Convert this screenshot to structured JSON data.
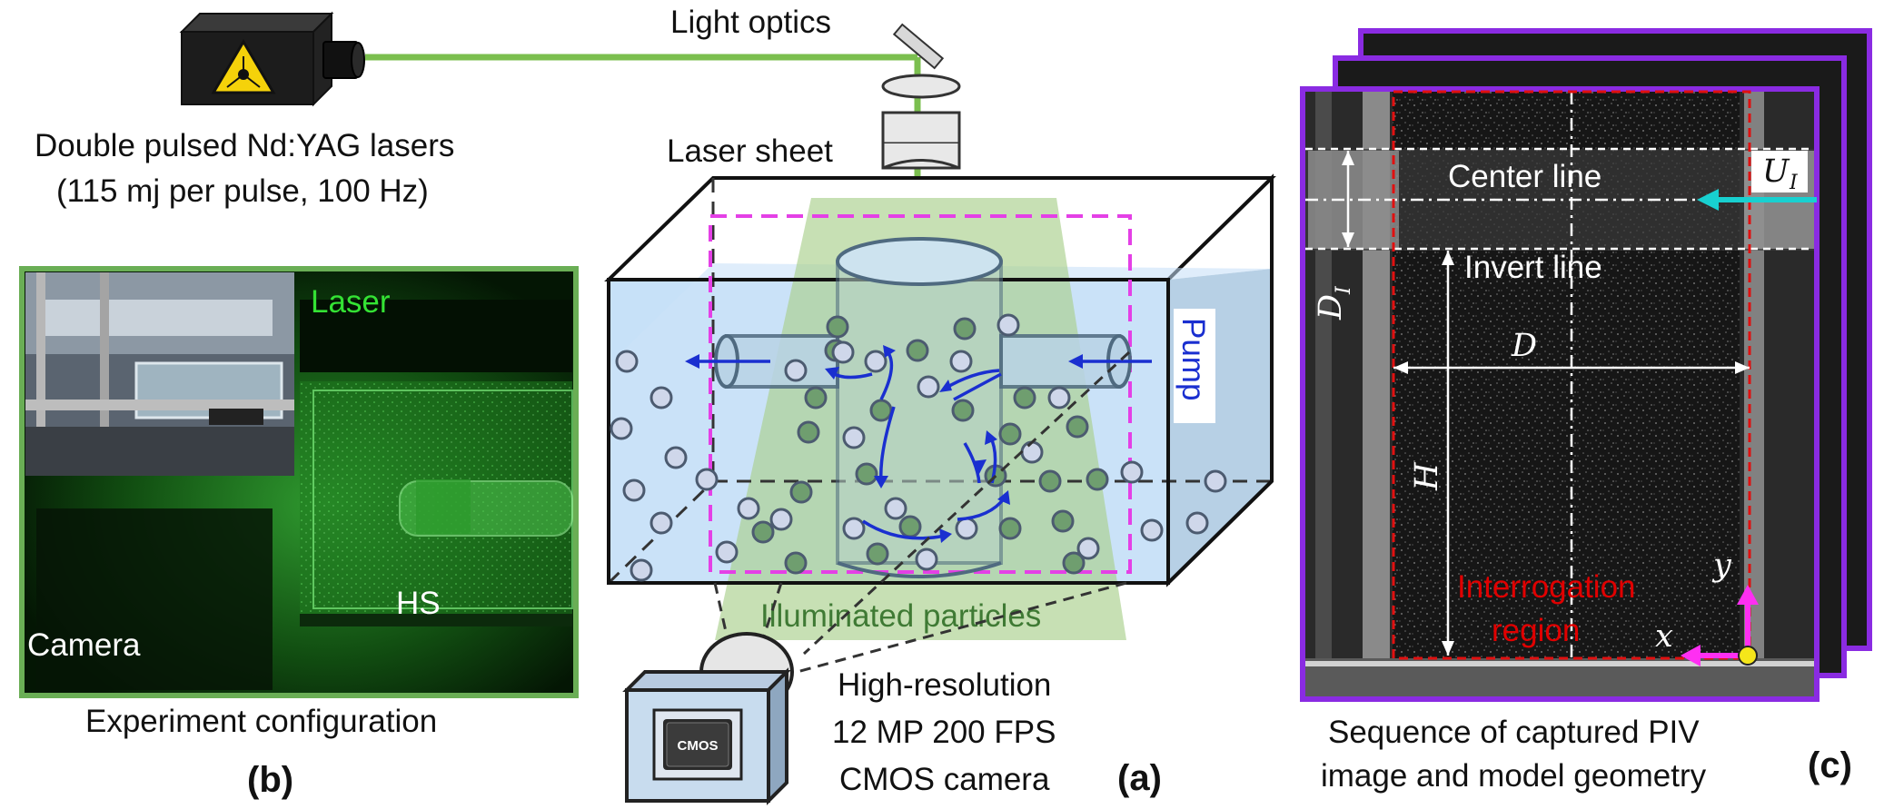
{
  "labels": {
    "light_optics": "Light optics",
    "laser_sheet": "Laser sheet",
    "lasers_line1": "Double pulsed Nd:YAG lasers",
    "lasers_line2": "(115 mj per pulse, 100 Hz)",
    "pump": "Pump",
    "illuminated_particles": "Illuminated particles",
    "camera_line1": "High-resolution",
    "camera_line2": "12 MP 200 FPS",
    "camera_line3": "CMOS camera",
    "cmos_chip": "CMOS",
    "photo_laser": "Laser",
    "photo_hs": "HS",
    "photo_camera": "Camera",
    "experiment_configuration": "Experiment configuration",
    "center_line": "Center line",
    "invert_line": "Invert line",
    "interrogation_line1": "Interrogation",
    "interrogation_line2": "region",
    "sym_d": "D",
    "sym_h": "H",
    "sym_di": "D",
    "sym_di_sub": "I",
    "sym_ui": "U",
    "sym_ui_sub": "I",
    "sym_x": "x",
    "sym_y": "y",
    "sequence_line1": "Sequence of captured PIV",
    "sequence_line2": "image and model geometry",
    "panel_a": "(a)",
    "panel_b": "(b)",
    "panel_c": "(c)"
  },
  "colors": {
    "laser_beam": "#7bbf4f",
    "tank_water": "#c4dff7",
    "light_sheet": "#a9cf8c",
    "particle_lit": "#6f9e6f",
    "particle_dark": "#cfd7ea",
    "flow_arrow": "#1a2fd0",
    "magenta": "#e440e6",
    "purple_frame": "#8a2be2",
    "green_frame": "#6aae55",
    "red_dashed": "#e01010",
    "cyan_arrow": "#18d0d0",
    "interrogation_text": "#e00000",
    "photo_text_green": "#34e234"
  }
}
